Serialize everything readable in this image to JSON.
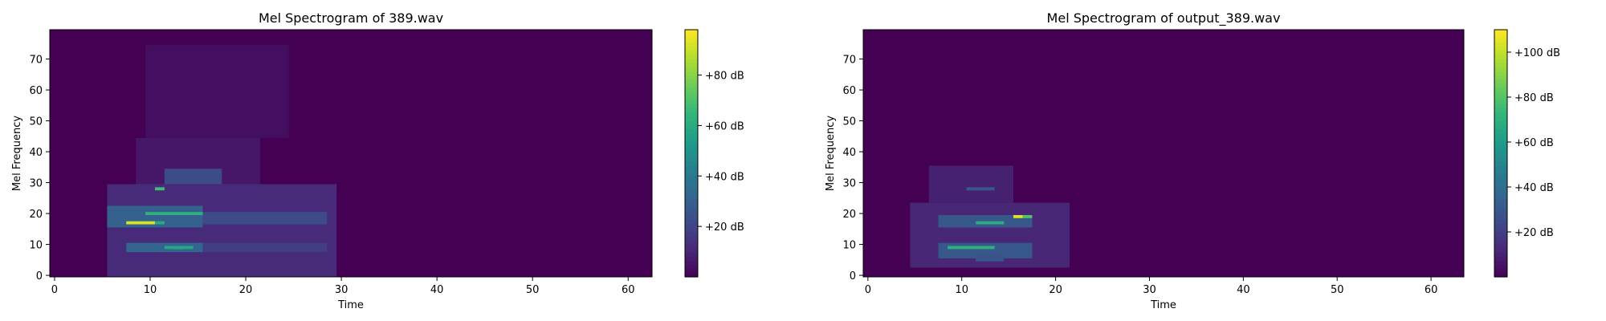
{
  "chart_data": [
    {
      "type": "heatmap",
      "title": "Mel Spectrogram of 389.wav",
      "xlabel": "Time",
      "ylabel": "Mel Frequency",
      "xlim": [
        -0.5,
        62.5
      ],
      "ylim": [
        -0.5,
        79.5
      ],
      "xticks": [
        0,
        10,
        20,
        30,
        40,
        50,
        60
      ],
      "yticks": [
        0,
        10,
        20,
        30,
        40,
        50,
        60,
        70
      ],
      "colorbar": {
        "min": 0,
        "max": 98,
        "ticks": [
          20,
          40,
          60,
          80
        ],
        "format": "+{v} dB"
      },
      "colormap": "viridis",
      "regions": [
        {
          "t": [
            6,
            30
          ],
          "f": [
            0,
            30
          ],
          "db": 12
        },
        {
          "t": [
            9,
            22
          ],
          "f": [
            30,
            45
          ],
          "db": 6
        },
        {
          "t": [
            10,
            25
          ],
          "f": [
            45,
            75
          ],
          "db": 4
        },
        {
          "t": [
            6,
            16
          ],
          "f": [
            16,
            23
          ],
          "db": 30
        },
        {
          "t": [
            8,
            16
          ],
          "f": [
            8,
            11
          ],
          "db": 32
        },
        {
          "t": [
            12,
            18
          ],
          "f": [
            30,
            35
          ],
          "db": 22
        },
        {
          "t": [
            8,
            11
          ],
          "f": [
            17,
            18
          ],
          "db": 92
        },
        {
          "t": [
            11,
            12
          ],
          "f": [
            17,
            18
          ],
          "db": 60
        },
        {
          "t": [
            10,
            16
          ],
          "f": [
            20,
            21
          ],
          "db": 62
        },
        {
          "t": [
            11,
            12
          ],
          "f": [
            28,
            29
          ],
          "db": 68
        },
        {
          "t": [
            13,
            14
          ],
          "f": [
            9,
            10
          ],
          "db": 82
        },
        {
          "t": [
            12,
            15
          ],
          "f": [
            9,
            10
          ],
          "db": 58
        },
        {
          "t": [
            16,
            29
          ],
          "f": [
            17,
            21
          ],
          "db": 22
        },
        {
          "t": [
            16,
            29
          ],
          "f": [
            8,
            11
          ],
          "db": 18
        }
      ]
    },
    {
      "type": "heatmap",
      "title": "Mel Spectrogram of output_389.wav",
      "xlabel": "Time",
      "ylabel": "Mel Frequency",
      "xlim": [
        -0.5,
        63.5
      ],
      "ylim": [
        -0.5,
        79.5
      ],
      "xticks": [
        0,
        10,
        20,
        30,
        40,
        50,
        60
      ],
      "yticks": [
        0,
        10,
        20,
        30,
        40,
        50,
        60,
        70
      ],
      "colorbar": {
        "min": 0,
        "max": 110,
        "ticks": [
          20,
          40,
          60,
          80,
          100
        ],
        "format": "+{v} dB"
      },
      "colormap": "viridis",
      "regions": [
        {
          "t": [
            5,
            22
          ],
          "f": [
            3,
            24
          ],
          "db": 12
        },
        {
          "t": [
            7,
            16
          ],
          "f": [
            24,
            36
          ],
          "db": 10
        },
        {
          "t": [
            8,
            18
          ],
          "f": [
            6,
            11
          ],
          "db": 30
        },
        {
          "t": [
            8,
            18
          ],
          "f": [
            16,
            20
          ],
          "db": 30
        },
        {
          "t": [
            9,
            14
          ],
          "f": [
            9,
            10
          ],
          "db": 70
        },
        {
          "t": [
            12,
            15
          ],
          "f": [
            17,
            18
          ],
          "db": 68
        },
        {
          "t": [
            16,
            17
          ],
          "f": [
            19,
            20
          ],
          "db": 104
        },
        {
          "t": [
            17,
            18
          ],
          "f": [
            19,
            20
          ],
          "db": 80
        },
        {
          "t": [
            11,
            14
          ],
          "f": [
            28,
            29
          ],
          "db": 30
        },
        {
          "t": [
            12,
            15
          ],
          "f": [
            5,
            7
          ],
          "db": 28
        }
      ]
    }
  ]
}
